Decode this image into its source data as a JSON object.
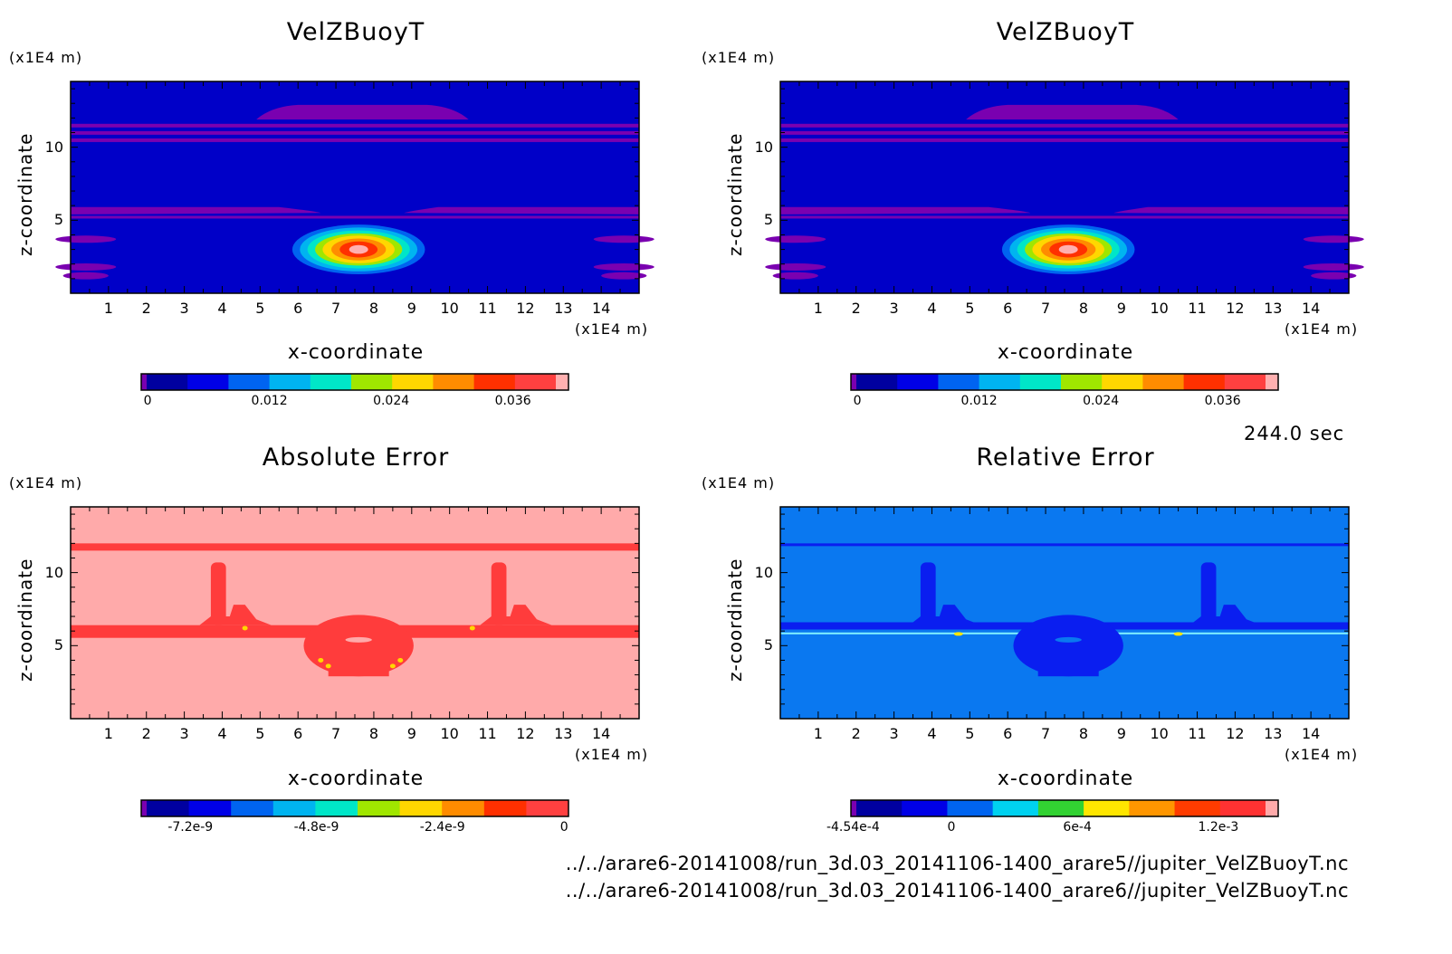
{
  "time_label": "244.0 sec",
  "file_paths": [
    "../../arare6-20141008/run_3d.03_20141106-1400_arare5//jupiter_VelZBuoyT.nc",
    "../../arare6-20141008/run_3d.03_20141106-1400_arare6//jupiter_VelZBuoyT.nc"
  ],
  "chart_data": [
    {
      "type": "heatmap",
      "title": "VelZBuoyT",
      "xlabel": "x-coordinate",
      "ylabel": "z-coordinate",
      "x_unit": "(x1E4 m)",
      "z_unit": "(x1E4 m)",
      "x_ticks": [
        "1",
        "2",
        "3",
        "4",
        "5",
        "6",
        "7",
        "8",
        "9",
        "10",
        "11",
        "12",
        "13",
        "14"
      ],
      "z_ticks": [
        "10",
        "5"
      ],
      "xlim": [
        0,
        15
      ],
      "zlim": [
        0,
        14.5
      ],
      "colorbar_ticks": [
        "0",
        "0.012",
        "0.024",
        "0.036"
      ],
      "colorbar_colors": [
        "#7a00b0",
        "#0000a0",
        "#0000e6",
        "#0064f0",
        "#00b4f0",
        "#00e6c8",
        "#a0e600",
        "#ffd700",
        "#ff8c00",
        "#ff3000",
        "#ff4040",
        "#ffb0b0"
      ],
      "background_color": "#0000c8",
      "feature": "positive bubble centered near x=7.6, z=3"
    },
    {
      "type": "heatmap",
      "title": "VelZBuoyT",
      "xlabel": "x-coordinate",
      "ylabel": "z-coordinate",
      "x_unit": "(x1E4 m)",
      "z_unit": "(x1E4 m)",
      "x_ticks": [
        "1",
        "2",
        "3",
        "4",
        "5",
        "6",
        "7",
        "8",
        "9",
        "10",
        "11",
        "12",
        "13",
        "14"
      ],
      "z_ticks": [
        "10",
        "5"
      ],
      "xlim": [
        0,
        15
      ],
      "zlim": [
        0,
        14.5
      ],
      "colorbar_ticks": [
        "0",
        "0.012",
        "0.024",
        "0.036"
      ],
      "colorbar_colors": [
        "#7a00b0",
        "#0000a0",
        "#0000e6",
        "#0064f0",
        "#00b4f0",
        "#00e6c8",
        "#a0e600",
        "#ffd700",
        "#ff8c00",
        "#ff3000",
        "#ff4040",
        "#ffb0b0"
      ],
      "background_color": "#0000c8",
      "feature": "positive bubble centered near x=7.6, z=3"
    },
    {
      "type": "heatmap",
      "title": "Absolute Error",
      "xlabel": "x-coordinate",
      "ylabel": "z-coordinate",
      "x_unit": "(x1E4 m)",
      "z_unit": "(x1E4 m)",
      "x_ticks": [
        "1",
        "2",
        "3",
        "4",
        "5",
        "6",
        "7",
        "8",
        "9",
        "10",
        "11",
        "12",
        "13",
        "14"
      ],
      "z_ticks": [
        "10",
        "5"
      ],
      "xlim": [
        0,
        15
      ],
      "zlim": [
        0,
        14.5
      ],
      "colorbar_ticks": [
        "-7.2e-9",
        "-4.8e-9",
        "-2.4e-9",
        "0"
      ],
      "colorbar_colors": [
        "#7a00b0",
        "#0000a0",
        "#0000e6",
        "#0064f0",
        "#00b4f0",
        "#00e6c8",
        "#a0e600",
        "#ffd700",
        "#ff8c00",
        "#ff3000",
        "#ff4040"
      ],
      "background_color": "#ffaaaa",
      "feature_color": "#ff3c3c"
    },
    {
      "type": "heatmap",
      "title": "Relative Error",
      "xlabel": "x-coordinate",
      "ylabel": "z-coordinate",
      "x_unit": "(x1E4 m)",
      "z_unit": "(x1E4 m)",
      "x_ticks": [
        "1",
        "2",
        "3",
        "4",
        "5",
        "6",
        "7",
        "8",
        "9",
        "10",
        "11",
        "12",
        "13",
        "14"
      ],
      "z_ticks": [
        "10",
        "5"
      ],
      "xlim": [
        0,
        15
      ],
      "zlim": [
        0,
        14.5
      ],
      "colorbar_ticks": [
        "-4.54e-4",
        "0",
        "6e-4",
        "1.2e-3"
      ],
      "colorbar_colors": [
        "#7a00b0",
        "#0000a0",
        "#0000e6",
        "#0064f0",
        "#00d2f0",
        "#32d232",
        "#ffe600",
        "#ff9600",
        "#ff3c00",
        "#ff3232",
        "#ffaaaa"
      ],
      "background_color": "#0a78f0",
      "feature_color": "#0a1ef0"
    }
  ]
}
